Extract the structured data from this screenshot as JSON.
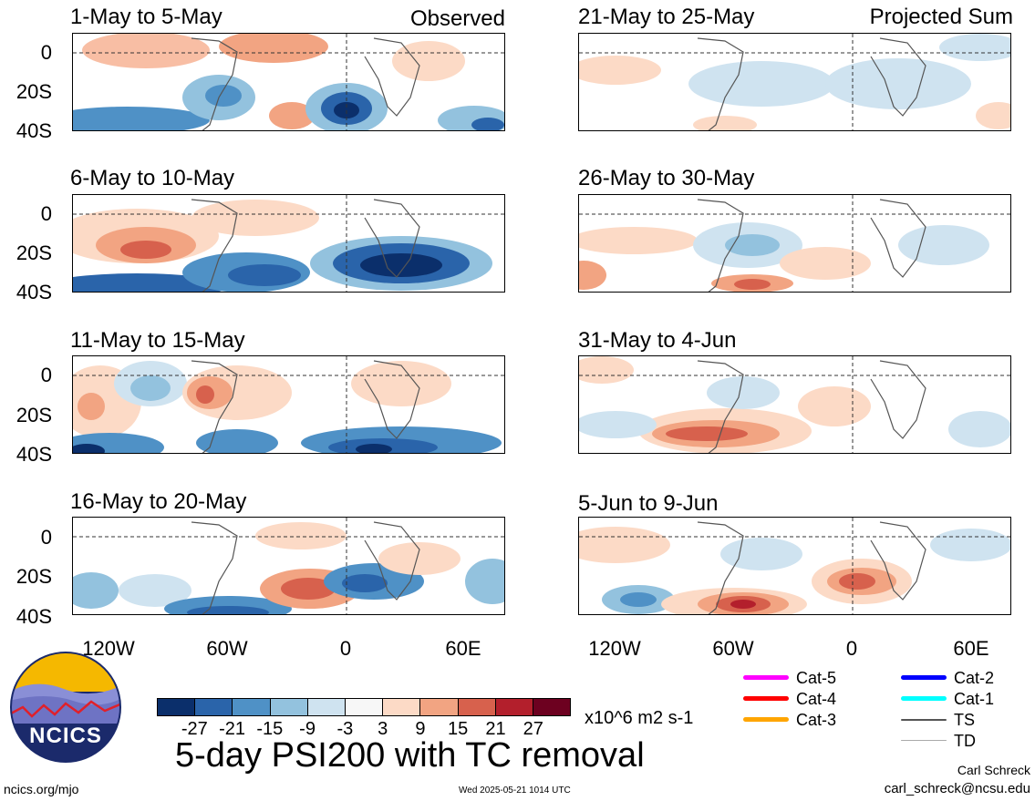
{
  "panels": [
    {
      "title": "1-May to 5-May",
      "tag": "Observed"
    },
    {
      "title": "6-May to 10-May",
      "tag": ""
    },
    {
      "title": "11-May to 15-May",
      "tag": ""
    },
    {
      "title": "16-May to 20-May",
      "tag": ""
    },
    {
      "title": "21-May to 25-May",
      "tag": "Projected Sum"
    },
    {
      "title": "26-May to 30-May",
      "tag": ""
    },
    {
      "title": "31-May to 4-Jun",
      "tag": ""
    },
    {
      "title": "5-Jun to 9-Jun",
      "tag": ""
    }
  ],
  "lat_labels": [
    "0",
    "20S",
    "40S"
  ],
  "lon_labels": [
    "120W",
    "60W",
    "0",
    "60E"
  ],
  "colorbar": {
    "colors": [
      "#0b2f6b",
      "#2a64aa",
      "#4f91c6",
      "#93c2de",
      "#cfe3f0",
      "#f7f7f7",
      "#fcdac6",
      "#f2a482",
      "#d7614d",
      "#b31f2c",
      "#6d0120"
    ],
    "labels": [
      "-27",
      "-21",
      "-15",
      "-9",
      "-3",
      "3",
      "9",
      "15",
      "21",
      "27"
    ],
    "units": "x10^6 m2 s-1"
  },
  "legend": [
    {
      "label": "Cat-5",
      "color": "#ff00ff"
    },
    {
      "label": "Cat-4",
      "color": "#ff0000"
    },
    {
      "label": "Cat-3",
      "color": "#ffa500"
    },
    {
      "label": "Cat-2",
      "color": "#0000ff"
    },
    {
      "label": "Cat-1",
      "color": "#00ffff"
    },
    {
      "label": "TS",
      "color": "#555555"
    },
    {
      "label": "TD",
      "color": "#aaaaaa"
    }
  ],
  "main_title": "5-day PSI200 with TC removal",
  "logo_text": "NCICS",
  "footer": {
    "url": "ncics.org/mjo",
    "timestamp": "Wed 2025-05-21 1014 UTC",
    "author": "Carl Schreck",
    "email": "carl_schreck@ncsu.edu"
  }
}
